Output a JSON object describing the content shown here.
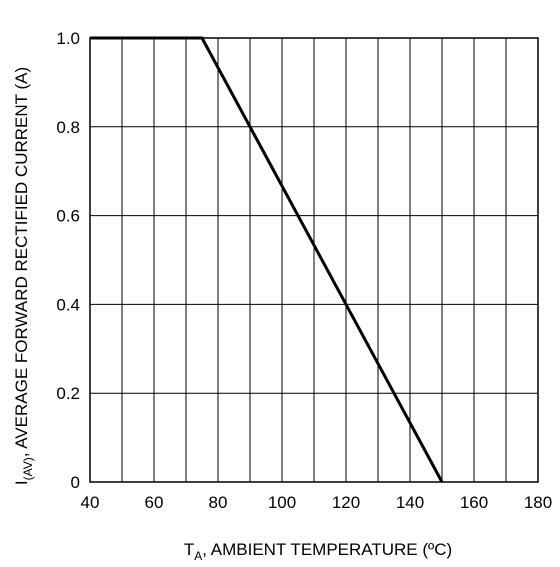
{
  "chart_data": {
    "type": "line",
    "xlabel": {
      "symbol": "T",
      "subscript": "A",
      "text": ", AMBIENT TEMPERATURE (ºC)"
    },
    "ylabel": {
      "symbol": "I",
      "subscript": "(AV)",
      "text": ", AVERAGE FORWARD RECTIFIED CURRENT (A)"
    },
    "xlim": [
      40,
      180
    ],
    "ylim": [
      0,
      1.0
    ],
    "x_ticks": [
      "40",
      "60",
      "80",
      "100",
      "120",
      "140",
      "160",
      "180"
    ],
    "y_ticks": [
      "0",
      "0.2",
      "0.4",
      "0.6",
      "0.8",
      "1.0"
    ],
    "x_grid_step": 10,
    "y_grid_step": 0.2,
    "grid": true,
    "line_color": "#000000",
    "series": [
      {
        "x": [
          40,
          75,
          150
        ],
        "y": [
          1.0,
          1.0,
          0
        ]
      }
    ]
  }
}
